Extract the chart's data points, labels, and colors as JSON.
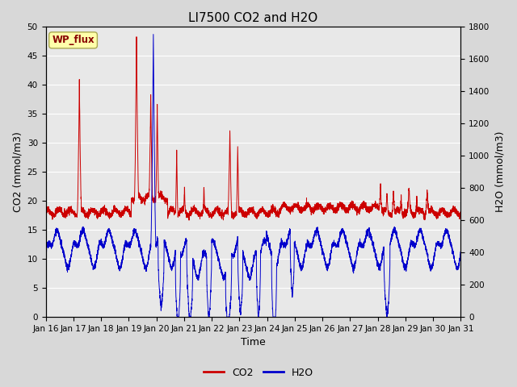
{
  "title": "LI7500 CO2 and H2O",
  "xlabel": "Time",
  "ylabel_left": "CO2 (mmol/m3)",
  "ylabel_right": "H2O (mmol/m3)",
  "annotation": "WP_flux",
  "ylim_left": [
    0,
    50
  ],
  "ylim_right": [
    0,
    1800
  ],
  "yticks_left": [
    0,
    5,
    10,
    15,
    20,
    25,
    30,
    35,
    40,
    45,
    50
  ],
  "yticks_right": [
    0,
    200,
    400,
    600,
    800,
    1000,
    1200,
    1400,
    1600,
    1800
  ],
  "xtick_labels": [
    "Jan 16",
    "Jan 17",
    "Jan 18",
    "Jan 19",
    "Jan 20",
    "Jan 21",
    "Jan 22",
    "Jan 23",
    "Jan 24",
    "Jan 25",
    "Jan 26",
    "Jan 27",
    "Jan 28",
    "Jan 29",
    "Jan 30",
    "Jan 31"
  ],
  "co2_color": "#cc0000",
  "h2o_color": "#0000cc",
  "bg_color": "#d8d8d8",
  "plot_bg_color": "#e8e8e8",
  "legend_co2": "CO2",
  "legend_h2o": "H2O",
  "wp_flux_bg": "#ffffaa",
  "wp_flux_text_color": "#880000",
  "title_fontsize": 11,
  "axis_fontsize": 9,
  "tick_fontsize": 7.5
}
